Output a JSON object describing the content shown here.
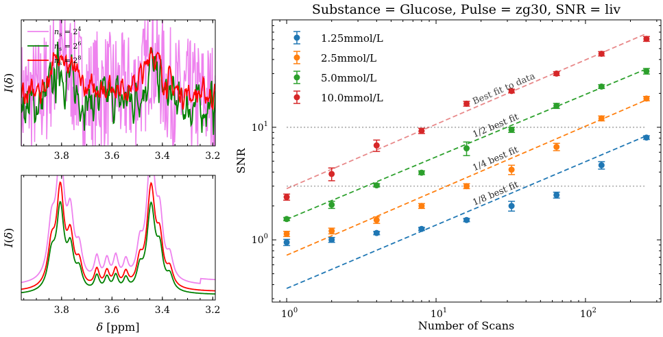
{
  "colors": {
    "c1.25": "#1f77b4",
    "c2.5": "#ff7f0e",
    "c5.0": "#2ca02c",
    "c10.0": "#d62728",
    "ns4": "#ee82ee",
    "ns6": "#008000",
    "ns8": "#ff0000",
    "ref": "#b0b0b0"
  },
  "chart_data": [
    {
      "type": "line",
      "panel": "top-left",
      "xlabel": "",
      "ylabel": "I(δ)",
      "xlim": [
        3.96,
        3.19
      ],
      "x_ticks": [
        3.8,
        3.6,
        3.4,
        3.2
      ],
      "x_tick_labels": [
        "3.8",
        "3.6",
        "3.4",
        "3.2"
      ],
      "legend": [
        "n_s = 2^4",
        "n_s = 2^6",
        "n_s = 2^8"
      ],
      "legend_placement": "upper-left",
      "legend_text": {
        "n4": {
          "base": "n",
          "sub": "s",
          "eq": " = 2",
          "sup": "4"
        },
        "n6": {
          "base": "n",
          "sub": "s",
          "eq": " = 2",
          "sup": "6"
        },
        "n8": {
          "base": "n",
          "sub": "s",
          "eq": " = 2",
          "sup": "8"
        }
      },
      "series": [
        {
          "name": "n_s = 2^4",
          "color": "#ee82ee"
        },
        {
          "name": "n_s = 2^6",
          "color": "#008000"
        },
        {
          "name": "n_s = 2^8",
          "color": "#ff0000"
        }
      ]
    },
    {
      "type": "line",
      "panel": "bottom-left",
      "xlabel": "δ [ppm]",
      "ylabel": "I(δ)",
      "xlim": [
        3.96,
        3.19
      ],
      "x_ticks": [
        3.8,
        3.6,
        3.4,
        3.2
      ],
      "x_tick_labels": [
        "3.8",
        "3.6",
        "3.4",
        "3.2"
      ],
      "series": [
        {
          "name": "n_s = 2^4",
          "color": "#ee82ee"
        },
        {
          "name": "n_s = 2^6",
          "color": "#008000"
        },
        {
          "name": "n_s = 2^8",
          "color": "#ff0000"
        }
      ]
    },
    {
      "type": "scatter",
      "panel": "right",
      "title": "Substance = Glucose, Pulse = zg30, SNR = liv",
      "xlabel": "Number of Scans",
      "ylabel": "SNR",
      "xscale": "log",
      "yscale": "log",
      "xlim": [
        0.8,
        320
      ],
      "ylim": [
        0.28,
        90
      ],
      "x_ticks": [
        1,
        10,
        100
      ],
      "x_tick_labels": [
        {
          "base": "10",
          "sup": "0"
        },
        {
          "base": "10",
          "sup": "1"
        },
        {
          "base": "10",
          "sup": "2"
        }
      ],
      "y_ticks": [
        1,
        10
      ],
      "y_tick_labels": [
        {
          "base": "10",
          "sup": "0"
        },
        {
          "base": "10",
          "sup": "1"
        }
      ],
      "legend_placement": "upper-left",
      "x": [
        1,
        2,
        4,
        8,
        16,
        32,
        64,
        128,
        256
      ],
      "series": [
        {
          "name": "1.25mmol/L",
          "color": "#1f77b4",
          "values": [
            0.95,
            1.0,
            1.15,
            1.25,
            1.5,
            2.0,
            2.5,
            4.6,
            8.1
          ],
          "errors": [
            0.06,
            0.05,
            0.04,
            0.04,
            0.05,
            0.2,
            0.15,
            0.35,
            0.3
          ],
          "fit_label": "1/8 best fit",
          "fit_start": 0.37,
          "fit_end": 8.4
        },
        {
          "name": "2.5mmol/L",
          "color": "#ff7f0e",
          "values": [
            1.13,
            1.2,
            1.5,
            2.0,
            3.0,
            4.2,
            6.7,
            12.0,
            18.0
          ],
          "errors": [
            0.06,
            0.07,
            0.1,
            0.1,
            0.15,
            0.4,
            0.5,
            0.6,
            0.8
          ],
          "fit_label": "1/4 best fit",
          "fit_start": 0.73,
          "fit_end": 17.5
        },
        {
          "name": "5.0mmol/L",
          "color": "#2ca02c",
          "values": [
            1.53,
            2.05,
            3.05,
            3.95,
            6.5,
            9.5,
            15.5,
            23.0,
            31.5
          ],
          "errors": [
            0.05,
            0.15,
            0.1,
            0.15,
            0.9,
            0.5,
            0.8,
            0.9,
            1.8
          ],
          "fit_label": "1/2 best fit",
          "fit_start": 1.52,
          "fit_end": 33.0
        },
        {
          "name": "10.0mmol/L",
          "color": "#d62728",
          "values": [
            2.4,
            3.85,
            6.9,
            9.3,
            16.2,
            21.0,
            30.0,
            45.0,
            61.0
          ],
          "errors": [
            0.15,
            0.5,
            0.8,
            0.5,
            0.8,
            0.8,
            1.2,
            2.0,
            3.0
          ],
          "fit_label": "Best fit to data",
          "fit_start": 2.85,
          "fit_end": 68.0
        }
      ],
      "reference_lines": [
        {
          "y": 10,
          "x_range": [
            1,
            256
          ]
        },
        {
          "y": 3,
          "x_range": [
            1,
            256
          ]
        }
      ]
    }
  ]
}
